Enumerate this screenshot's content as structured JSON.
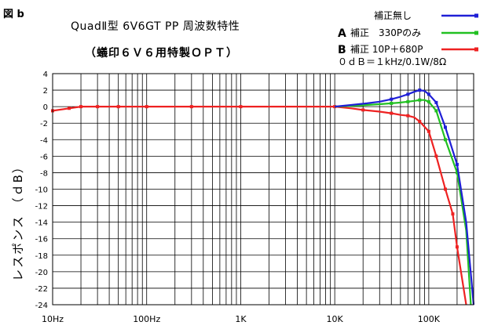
{
  "header": {
    "figure_label": "図 b",
    "title": "QuadⅡ型 6V6GT PP 周波数特性",
    "subtitle": "（蟻印６Ｖ６用特製ＯＰＴ）",
    "condition": "０ｄＢ＝１kHz/0.1W/8Ω"
  },
  "legend": [
    {
      "prefix": "",
      "label": "補正無し",
      "color": "#1f1fd6"
    },
    {
      "prefix": "A",
      "label": "補正　330Pのみ",
      "color": "#22c022"
    },
    {
      "prefix": "B",
      "label": "補正 10P＋680P",
      "color": "#ee2222"
    }
  ],
  "chart_data": {
    "type": "line",
    "xscale": "log",
    "xlim": [
      10,
      300000
    ],
    "ylim": [
      -24,
      4
    ],
    "ylabel": "レスポンス （ｄB）",
    "xlabel": "",
    "x_ticks": [
      {
        "value": 10,
        "label": "10Hz"
      },
      {
        "value": 100,
        "label": "100Hz"
      },
      {
        "value": 1000,
        "label": "1K"
      },
      {
        "value": 10000,
        "label": "10K"
      },
      {
        "value": 100000,
        "label": "100K"
      }
    ],
    "y_ticks": [
      4,
      2,
      0,
      -2,
      -4,
      -6,
      -8,
      -10,
      -12,
      -14,
      -16,
      -18,
      -20,
      -22,
      -24
    ],
    "grid": true,
    "legend_position": "top-right",
    "series": [
      {
        "name": "補正無し",
        "color": "#1f1fd6",
        "points": [
          [
            10000,
            0
          ],
          [
            15000,
            0.2
          ],
          [
            22000,
            0.4
          ],
          [
            30000,
            0.6
          ],
          [
            40000,
            0.9
          ],
          [
            50000,
            1.2
          ],
          [
            60000,
            1.5
          ],
          [
            70000,
            1.8
          ],
          [
            80000,
            2.0
          ],
          [
            90000,
            1.9
          ],
          [
            100000,
            1.5
          ],
          [
            120000,
            0.5
          ],
          [
            150000,
            -2.5
          ],
          [
            200000,
            -7
          ],
          [
            250000,
            -14
          ],
          [
            300000,
            -24
          ]
        ],
        "markers": [
          [
            40000,
            0.9
          ],
          [
            60000,
            1.5
          ],
          [
            80000,
            2.0
          ],
          [
            100000,
            1.5
          ],
          [
            120000,
            0.5
          ],
          [
            150000,
            -2.5
          ],
          [
            200000,
            -7
          ]
        ]
      },
      {
        "name": "補正　330Pのみ",
        "color": "#22c022",
        "points": [
          [
            10000,
            0
          ],
          [
            15000,
            0.1
          ],
          [
            22000,
            0.2
          ],
          [
            30000,
            0.3
          ],
          [
            40000,
            0.4
          ],
          [
            50000,
            0.5
          ],
          [
            60000,
            0.6
          ],
          [
            70000,
            0.7
          ],
          [
            80000,
            0.8
          ],
          [
            90000,
            0.8
          ],
          [
            100000,
            0.6
          ],
          [
            120000,
            -0.5
          ],
          [
            150000,
            -4
          ],
          [
            200000,
            -8
          ],
          [
            250000,
            -15
          ],
          [
            280000,
            -24
          ]
        ],
        "markers": [
          [
            40000,
            0.4
          ],
          [
            60000,
            0.6
          ],
          [
            80000,
            0.8
          ],
          [
            100000,
            0.6
          ],
          [
            120000,
            -0.5
          ],
          [
            150000,
            -4
          ],
          [
            200000,
            -8
          ]
        ]
      },
      {
        "name": "補正 10P＋680P",
        "color": "#ee2222",
        "points": [
          [
            10,
            -0.5
          ],
          [
            15,
            -0.2
          ],
          [
            20,
            0
          ],
          [
            30,
            0
          ],
          [
            50,
            0
          ],
          [
            100,
            0
          ],
          [
            300,
            0
          ],
          [
            1000,
            0
          ],
          [
            5000,
            0
          ],
          [
            10000,
            0
          ],
          [
            15000,
            -0.2
          ],
          [
            20000,
            -0.4
          ],
          [
            30000,
            -0.6
          ],
          [
            40000,
            -0.8
          ],
          [
            50000,
            -1.0
          ],
          [
            60000,
            -1.1
          ],
          [
            70000,
            -1.3
          ],
          [
            80000,
            -1.8
          ],
          [
            100000,
            -3
          ],
          [
            120000,
            -6
          ],
          [
            150000,
            -10
          ],
          [
            180000,
            -13
          ],
          [
            200000,
            -17
          ],
          [
            250000,
            -24
          ]
        ],
        "markers": [
          [
            10,
            -0.5
          ],
          [
            15,
            -0.2
          ],
          [
            20,
            0
          ],
          [
            30,
            0
          ],
          [
            50,
            0
          ],
          [
            100,
            0
          ],
          [
            300,
            0
          ],
          [
            1000,
            0
          ],
          [
            10000,
            0
          ],
          [
            20000,
            -0.4
          ],
          [
            40000,
            -0.8
          ],
          [
            60000,
            -1.1
          ],
          [
            80000,
            -1.8
          ],
          [
            100000,
            -3
          ],
          [
            120000,
            -6
          ],
          [
            150000,
            -10
          ],
          [
            180000,
            -13
          ],
          [
            200000,
            -17
          ]
        ]
      }
    ]
  }
}
